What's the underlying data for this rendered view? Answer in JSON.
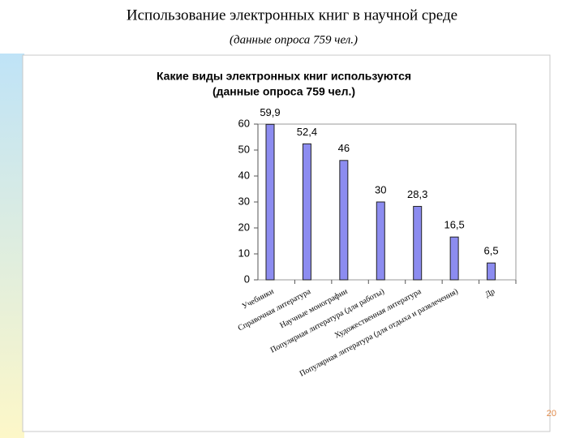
{
  "slide": {
    "title": "Использование электронных книг в научной среде",
    "subtitle": "(данные опроса 759 чел.)",
    "page_number": "20"
  },
  "chart_data": {
    "type": "bar",
    "title": "Какие виды электронных книг используются",
    "subtitle": "(данные опроса 759 чел.)",
    "categories": [
      "Учебники",
      "Справочная литература",
      "Научные монографии",
      "Популярная литература (для работы)",
      "Художественная литература",
      "Популярная литература (для отдыха и развлечения)",
      "Др"
    ],
    "values": [
      59.9,
      52.4,
      46,
      30,
      28.3,
      16.5,
      6.5
    ],
    "value_labels": [
      "59,9",
      "52,4",
      "46",
      "30",
      "28,3",
      "16,5",
      "6,5"
    ],
    "color": "#8c8cf0",
    "ylim": [
      0,
      60
    ],
    "yticks": [
      0,
      10,
      20,
      30,
      40,
      50,
      60
    ],
    "grid": false
  }
}
